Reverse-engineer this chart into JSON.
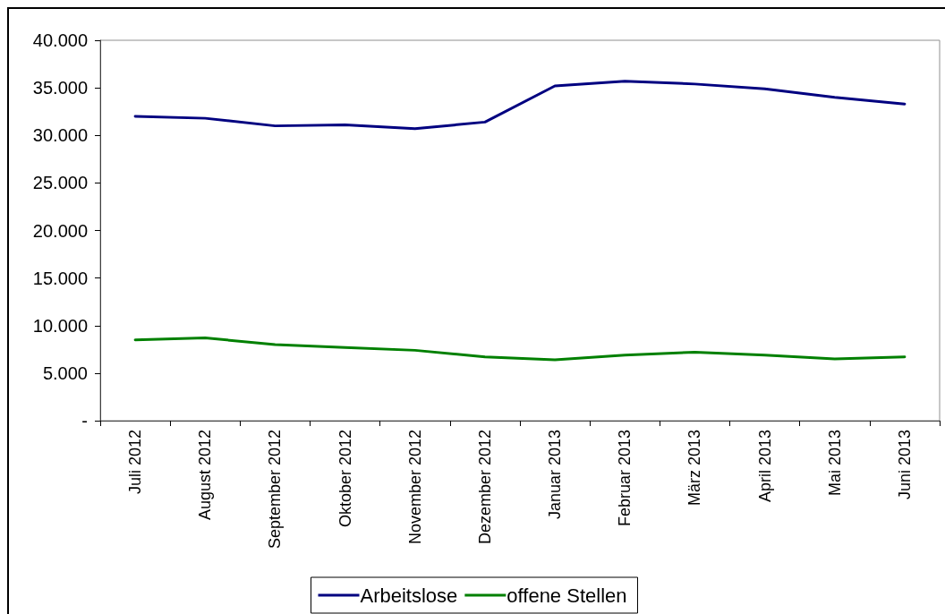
{
  "chart_data": {
    "type": "line",
    "categories": [
      "Juli 2012",
      "August 2012",
      "September 2012",
      "Oktober 2012",
      "November 2012",
      "Dezember 2012",
      "Januar 2013",
      "Februar 2013",
      "März 2013",
      "April 2013",
      "Mai 2013",
      "Juni 2013"
    ],
    "series": [
      {
        "name": "Arbeitslose",
        "color": "#000080",
        "values": [
          32000,
          31800,
          31000,
          31100,
          30700,
          31400,
          35200,
          35700,
          35400,
          34900,
          34000,
          33300
        ]
      },
      {
        "name": "offene Stellen",
        "color": "#008000",
        "values": [
          8500,
          8700,
          8000,
          7700,
          7400,
          6700,
          6400,
          6900,
          7200,
          6900,
          6500,
          6700
        ]
      }
    ],
    "ylim": [
      0,
      40000
    ],
    "yticks": [
      {
        "value": 0,
        "label": "-"
      },
      {
        "value": 5000,
        "label": "5.000"
      },
      {
        "value": 10000,
        "label": "10.000"
      },
      {
        "value": 15000,
        "label": "15.000"
      },
      {
        "value": 20000,
        "label": "20.000"
      },
      {
        "value": 25000,
        "label": "25.000"
      },
      {
        "value": 30000,
        "label": "30.000"
      },
      {
        "value": 35000,
        "label": "35.000"
      },
      {
        "value": 40000,
        "label": "40.000"
      }
    ],
    "grid": false,
    "legend": "bottom",
    "marker": "none",
    "line_style": "solid"
  }
}
